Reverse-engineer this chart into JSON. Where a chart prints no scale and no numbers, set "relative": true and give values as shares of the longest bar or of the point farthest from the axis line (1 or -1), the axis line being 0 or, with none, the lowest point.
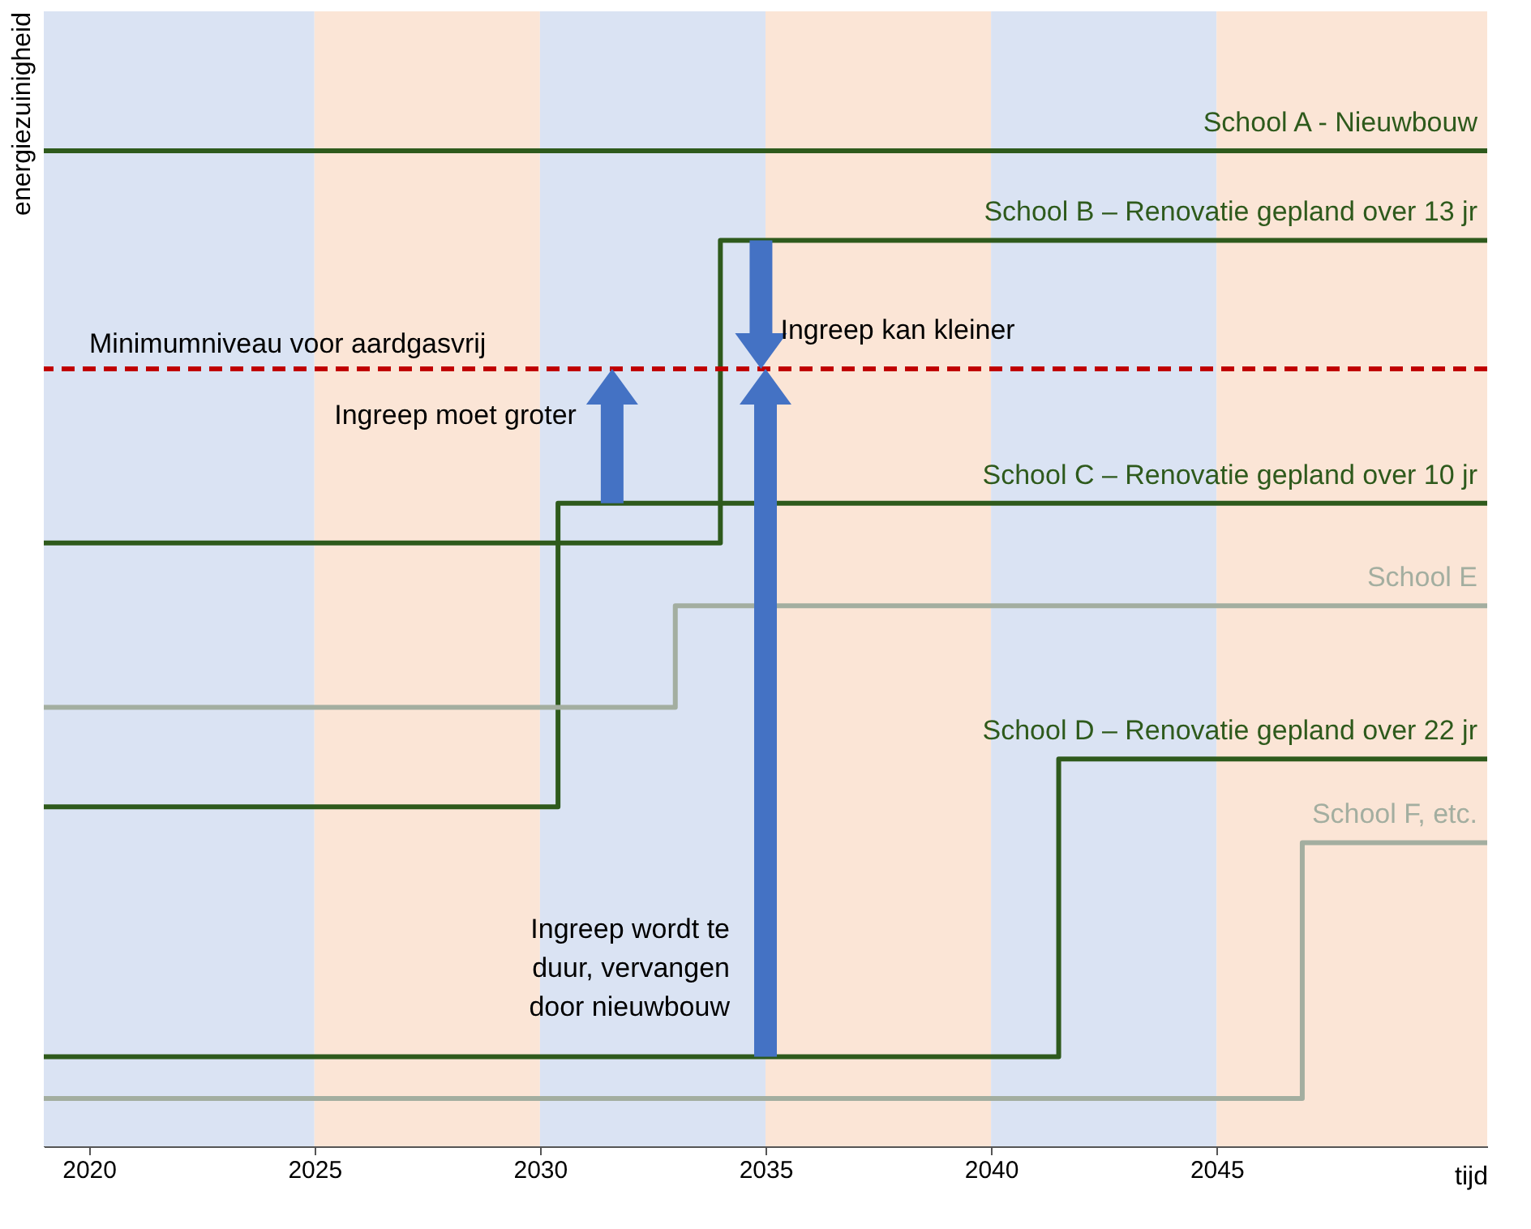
{
  "chart_data": {
    "type": "step",
    "relative": true,
    "xlabel": "tijd",
    "ylabel": "energiezuinigheid",
    "xlim": [
      2019,
      2051
    ],
    "xticks": [
      2020,
      2025,
      2030,
      2035,
      2040,
      2045
    ],
    "series": [
      {
        "name": "School A - Nieuwbouw",
        "color": "#2e5a1c",
        "x": [
          2019,
          2051
        ],
        "values": [
          1,
          1
        ]
      },
      {
        "name": "School B – Renovatie gepland over 13 jr",
        "color": "#2e5a1c",
        "x": [
          2019,
          2034,
          2051
        ],
        "values": [
          0.606,
          0.91,
          0.91
        ]
      },
      {
        "name": "School C – Renovatie gepland over 10 jr",
        "color": "#2e5a1c",
        "x": [
          2019,
          2030.4,
          2051
        ],
        "values": [
          0.341,
          0.646,
          0.646
        ]
      },
      {
        "name": "School E",
        "color": "#a3aea0",
        "x": [
          2019,
          2033,
          2051
        ],
        "values": [
          0.441,
          0.543,
          0.543
        ]
      },
      {
        "name": "School D – Renovatie gepland over 22 jr",
        "color": "#2e5a1c",
        "x": [
          2019,
          2041.5,
          2051
        ],
        "values": [
          0.09,
          0.389,
          0.389
        ]
      },
      {
        "name": "School F, etc.",
        "color": "#a3aea0",
        "x": [
          2019,
          2046.9,
          2051
        ],
        "values": [
          0.048,
          0.305,
          0.305
        ]
      }
    ],
    "bands": [
      {
        "axis": "x",
        "from": 2019,
        "to": 2025,
        "color": "#dae3f3"
      },
      {
        "axis": "x",
        "from": 2025,
        "to": 2030,
        "color": "#fbe5d6"
      },
      {
        "axis": "x",
        "from": 2030,
        "to": 2035,
        "color": "#dae3f3"
      },
      {
        "axis": "x",
        "from": 2035,
        "to": 2040,
        "color": "#fbe5d6"
      },
      {
        "axis": "x",
        "from": 2040,
        "to": 2045,
        "color": "#dae3f3"
      },
      {
        "axis": "x",
        "from": 2045,
        "to": 2051,
        "color": "#fbe5d6"
      }
    ],
    "ref_lines": [
      {
        "axis": "y",
        "value": 0.781,
        "label": "Minimumniveau voor aardgasvrij",
        "color": "#c00000",
        "line_style": "dashed"
      }
    ],
    "annotations": [
      {
        "text": "Ingreep moet groter",
        "x": 2031.6,
        "y": 0.646
      },
      {
        "text": "Ingreep kan kleiner",
        "x": 2034.9,
        "y": 0.91
      },
      {
        "text": "Ingreep wordt te\nduur, vervangen\ndoor nieuwbouw",
        "x": 2035,
        "y": 0.09
      }
    ]
  }
}
